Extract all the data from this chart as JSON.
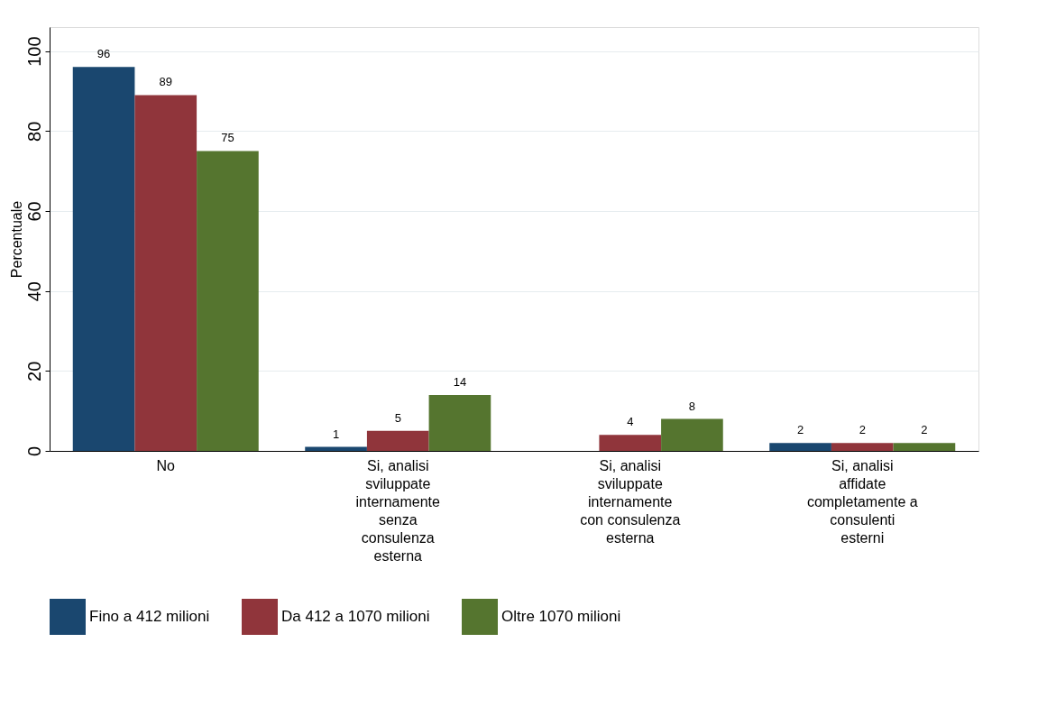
{
  "chart_data": {
    "type": "bar",
    "ylabel": "Percentuale",
    "categories": [
      "No",
      "Si, analisi\nsviluppate\ninternamente\nsenza\nconsulenza\nesterna",
      "Si,  analisi\nsviluppate\ninternamente\ncon consulenza\nesterna",
      "Si, analisi\naffidate\ncompletamente a\nconsulenti\nesterni"
    ],
    "series": [
      {
        "name": "Fino a 412 milioni",
        "color": "#1a476f",
        "values": [
          96,
          1,
          0,
          2
        ],
        "value_labels": [
          "96",
          "1",
          null,
          "2"
        ]
      },
      {
        "name": "Da 412 a 1070 milioni",
        "color": "#90353b",
        "values": [
          89,
          5,
          4,
          2
        ],
        "value_labels": [
          "89",
          "5",
          "4",
          "2"
        ]
      },
      {
        "name": "Oltre 1070 milioni",
        "color": "#55752f",
        "values": [
          75,
          14,
          8,
          2
        ],
        "value_labels": [
          "75",
          "14",
          "8",
          "2"
        ]
      }
    ],
    "ylim": [
      0,
      106
    ],
    "yticks": [
      0,
      20,
      40,
      60,
      80,
      100
    ],
    "grid": "y",
    "legend": "bottom"
  }
}
